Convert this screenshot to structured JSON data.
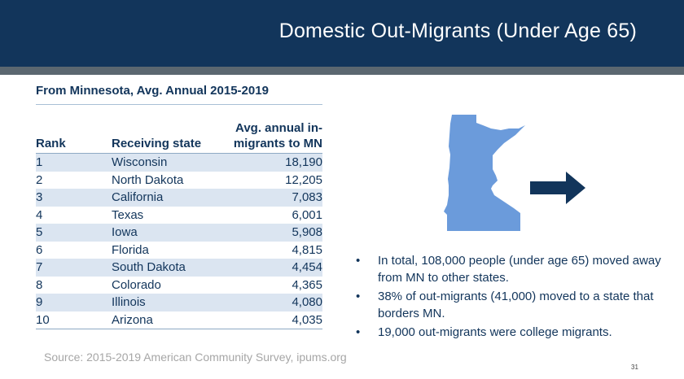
{
  "header": {
    "title": "Domestic Out-Migrants (Under Age 65)"
  },
  "subtitle": "From Minnesota, Avg. Annual 2015-2019",
  "table": {
    "headers": {
      "rank": "Rank",
      "state": "Receiving state",
      "value_line1": "Avg. annual in-",
      "value_line2": "migrants to MN"
    },
    "rows": [
      {
        "rank": "1",
        "state": "Wisconsin",
        "value": "18,190"
      },
      {
        "rank": "2",
        "state": "North Dakota",
        "value": "12,205"
      },
      {
        "rank": "3",
        "state": "California",
        "value": "7,083"
      },
      {
        "rank": "4",
        "state": "Texas",
        "value": "6,001"
      },
      {
        "rank": "5",
        "state": "Iowa",
        "value": "5,908"
      },
      {
        "rank": "6",
        "state": "Florida",
        "value": "4,815"
      },
      {
        "rank": "7",
        "state": "South Dakota",
        "value": "4,454"
      },
      {
        "rank": "8",
        "state": "Colorado",
        "value": "4,365"
      },
      {
        "rank": "9",
        "state": "Illinois",
        "value": "4,080"
      },
      {
        "rank": "10",
        "state": "Arizona",
        "value": "4,035"
      }
    ]
  },
  "bullets": [
    {
      "marker": "•",
      "text": "In total, 108,000 people (under age 65) moved away from MN to other states."
    },
    {
      "marker": "•",
      "text": "38% of out-migrants (41,000) moved to a state that borders MN."
    },
    {
      "marker": "•",
      "text": "19,000 out-migrants were college migrants."
    }
  ],
  "source": "Source: 2015-2019 American Community Survey, ipums.org",
  "page_number": "31",
  "icons": {
    "map": "minnesota-map-icon",
    "arrow": "right-arrow-icon"
  },
  "colors": {
    "header_bg": "#12355b",
    "stripe": "#5b6770",
    "map_fill": "#6b9bdb",
    "arrow_fill": "#12355b",
    "row_band": "#dbe5f1"
  }
}
